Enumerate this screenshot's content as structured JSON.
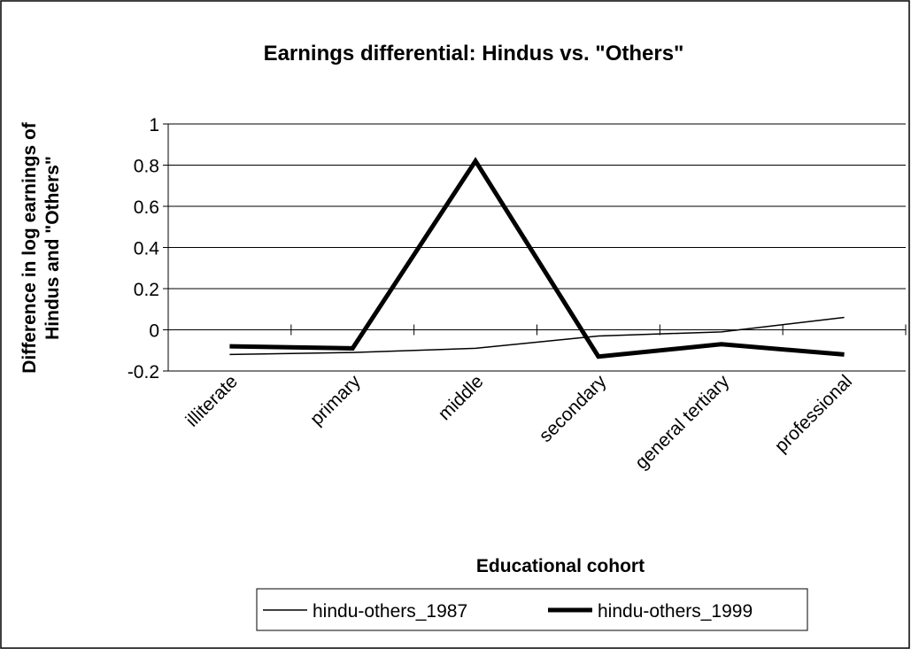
{
  "chart_data": {
    "type": "line",
    "title": "Earnings differential: Hindus vs. \"Others\"",
    "x_label": "Educational cohort",
    "y_label": [
      "Difference in log earnings of",
      "Hindus and \"Others\""
    ],
    "categories": [
      "illiterate",
      "primary",
      "middle",
      "secondary",
      "general tertiary",
      "professional"
    ],
    "series": [
      {
        "name": "hindu-others_1987",
        "color": "#000000",
        "width": 1.5,
        "values": [
          -0.12,
          -0.11,
          -0.09,
          -0.03,
          -0.01,
          0.06
        ]
      },
      {
        "name": "hindu-others_1999",
        "color": "#000000",
        "width": 5,
        "values": [
          -0.08,
          -0.09,
          0.82,
          -0.13,
          -0.07,
          -0.12
        ]
      }
    ],
    "ylim": [
      -0.2,
      1
    ],
    "yticks": [
      -0.2,
      0,
      0.2,
      0.4,
      0.6,
      0.8,
      1
    ],
    "grid": true,
    "legend": "bottom"
  }
}
